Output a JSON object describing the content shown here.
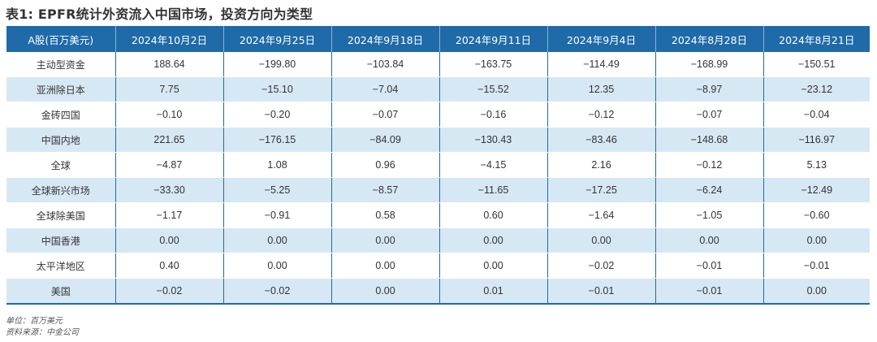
{
  "title": "表1: EPFR统计外资流入中国市场，投资方向为类型",
  "table": {
    "headers": [
      "A股(百万美元)",
      "2024年10月2日",
      "2024年9月25日",
      "2024年9月18日",
      "2024年9月11日",
      "2024年9月4日",
      "2024年8月28日",
      "2024年8月21日"
    ],
    "rows": [
      [
        "主动型资金",
        "188.64",
        "−199.80",
        "−103.84",
        "−163.75",
        "−114.49",
        "−168.99",
        "−150.51"
      ],
      [
        "亚洲除日本",
        "7.75",
        "−15.10",
        "−7.04",
        "−15.52",
        "12.35",
        "−8.97",
        "−23.12"
      ],
      [
        "金砖四国",
        "−0.10",
        "−0.20",
        "−0.07",
        "−0.16",
        "−0.12",
        "−0.07",
        "−0.04"
      ],
      [
        "中国内地",
        "221.65",
        "−176.15",
        "−84.09",
        "−130.43",
        "−83.46",
        "−148.68",
        "−116.97"
      ],
      [
        "全球",
        "−4.87",
        "1.08",
        "0.96",
        "−4.15",
        "2.16",
        "−0.12",
        "5.13"
      ],
      [
        "全球新兴市场",
        "−33.30",
        "−5.25",
        "−8.57",
        "−11.65",
        "−17.25",
        "−6.24",
        "−12.49"
      ],
      [
        "全球除美国",
        "−1.17",
        "−0.91",
        "0.58",
        "0.60",
        "−1.64",
        "−1.05",
        "−0.60"
      ],
      [
        "中国香港",
        "0.00",
        "0.00",
        "0.00",
        "0.00",
        "0.00",
        "0.00",
        "0.00"
      ],
      [
        "太平洋地区",
        "0.40",
        "0.00",
        "0.00",
        "0.00",
        "−0.02",
        "−0.01",
        "−0.01"
      ],
      [
        "美国",
        "−0.02",
        "−0.02",
        "0.00",
        "0.01",
        "−0.01",
        "−0.01",
        "0.00"
      ]
    ]
  },
  "notes": {
    "unit": "单位：百万美元",
    "source": "资料来源：中金公司"
  },
  "colors": {
    "header_bg": "#1f6aa8",
    "stripe_bg": "#d7e8f5"
  }
}
